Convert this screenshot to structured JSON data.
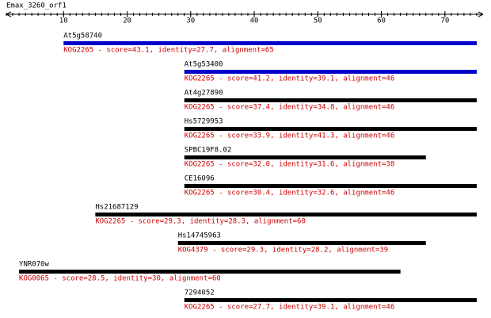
{
  "chart_data": {
    "type": "alignment",
    "title": "Emax_3260_orf1",
    "xlim": [
      1,
      76
    ],
    "xticks": [
      10,
      20,
      30,
      40,
      50,
      60,
      70
    ],
    "minor_xticks": [
      1,
      2,
      3,
      4,
      5,
      6,
      7,
      8,
      9,
      10,
      11,
      12,
      13,
      14,
      15,
      16,
      17,
      18,
      19,
      20,
      21,
      22,
      23,
      24,
      25,
      26,
      27,
      28,
      29,
      30,
      31,
      32,
      33,
      34,
      35,
      36,
      37,
      38,
      39,
      40,
      41,
      42,
      43,
      44,
      45,
      46,
      47,
      48,
      49,
      50,
      51,
      52,
      53,
      54,
      55,
      56,
      57,
      58,
      59,
      60,
      61,
      62,
      63,
      64,
      65,
      66,
      67,
      68,
      69,
      70,
      71,
      72,
      73,
      74,
      75
    ],
    "hits": [
      {
        "name": "At5g58740",
        "description": "KOG2265 - score=43.1, identity=27.7, alignment=65",
        "start": 10,
        "end": 75,
        "color": "#0000c8"
      },
      {
        "name": "At5g53400",
        "description": "KOG2265 - score=41.2, identity=39.1, alignment=46",
        "start": 29,
        "end": 75,
        "color": "#0000c8"
      },
      {
        "name": "At4g27890",
        "description": "KOG2265 - score=37.4, identity=34.8, alignment=46",
        "start": 29,
        "end": 75,
        "color": "#000000"
      },
      {
        "name": "Hs5729953",
        "description": "KOG2265 - score=33.9, identity=41.3, alignment=46",
        "start": 29,
        "end": 75,
        "color": "#000000"
      },
      {
        "name": "SPBC19F8.02",
        "description": "KOG2265 - score=32.0, identity=31.6, alignment=38",
        "start": 29,
        "end": 67,
        "color": "#000000"
      },
      {
        "name": "CE16096",
        "description": "KOG2265 - score=30.4, identity=32.6, alignment=46",
        "start": 29,
        "end": 75,
        "color": "#000000"
      },
      {
        "name": "Hs21687129",
        "description": "KOG2265 - score=29.3, identity=28.3, alignment=60",
        "start": 15,
        "end": 75,
        "color": "#000000"
      },
      {
        "name": "Hs14745963",
        "description": "KOG4379 - score=29.3, identity=28.2, alignment=39",
        "start": 28,
        "end": 67,
        "color": "#000000"
      },
      {
        "name": "YNR070w",
        "description": "KOG0065 - score=28.5, identity=30, alignment=60",
        "start": 3,
        "end": 63,
        "color": "#000000"
      },
      {
        "name": "7294052",
        "description": "KOG2265 - score=27.7, identity=39.1, alignment=46",
        "start": 29,
        "end": 75,
        "color": "#000000"
      }
    ],
    "description_color": "#cc0000"
  }
}
